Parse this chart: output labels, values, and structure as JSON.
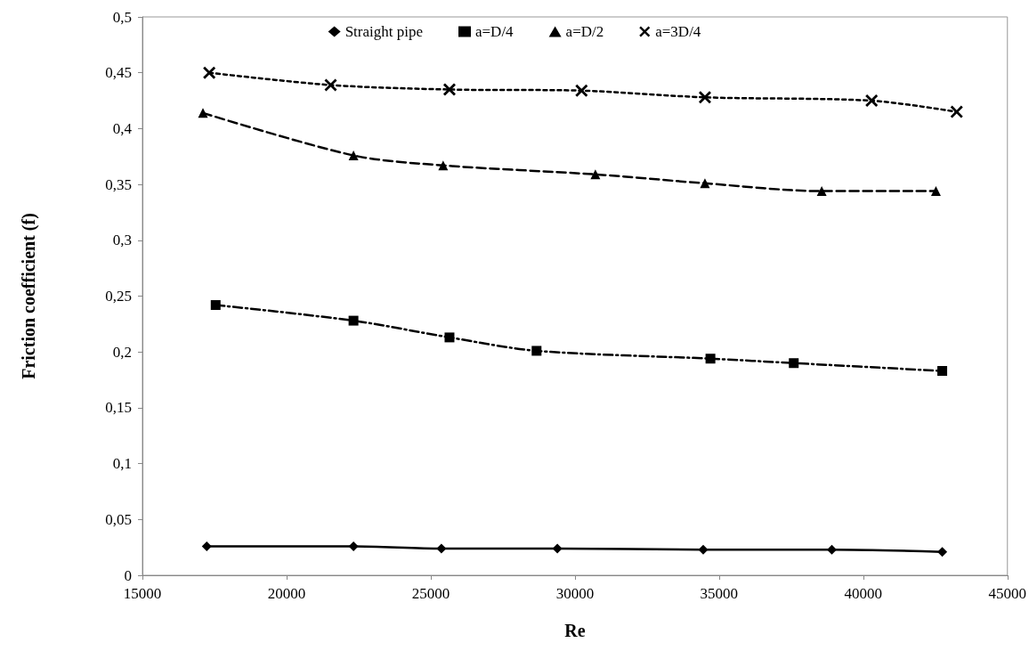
{
  "chart_data": {
    "type": "line",
    "xlabel": "Re",
    "ylabel": "Friction coefficient (f)",
    "xlim": [
      15000,
      45000
    ],
    "xticks": [
      15000,
      20000,
      25000,
      30000,
      35000,
      40000,
      45000
    ],
    "ylim": [
      0,
      0.5
    ],
    "yticks": [
      0,
      {
        "value": 0.05,
        "label": "0,05"
      },
      {
        "value": 0.1,
        "label": "0,1"
      },
      {
        "value": 0.15,
        "label": "0,15"
      },
      {
        "value": 0.2,
        "label": "0,2"
      },
      {
        "value": 0.25,
        "label": "0,25"
      },
      {
        "value": 0.3,
        "label": "0,3"
      },
      {
        "value": 0.35,
        "label": "0,35"
      },
      {
        "value": 0.4,
        "label": "0,4"
      },
      {
        "value": 0.45,
        "label": "0,45"
      },
      {
        "value": 0.5,
        "label": "0,5"
      }
    ],
    "grid": false,
    "legend": "top",
    "series": [
      {
        "name": "Straight pipe",
        "color": "#000000",
        "marker": "diamond",
        "line_style": "solid",
        "x": [
          17230,
          22320,
          25370,
          29390,
          34450,
          38910,
          42740
        ],
        "values": [
          0.026,
          0.026,
          0.024,
          0.024,
          0.023,
          0.023,
          0.021
        ]
      },
      {
        "name": "a=D/4",
        "color": "#000000",
        "marker": "square",
        "line_style": "dashdot",
        "x": [
          17540,
          22320,
          25650,
          28670,
          34700,
          37590,
          42740
        ],
        "values": [
          0.242,
          0.228,
          0.213,
          0.201,
          0.194,
          0.19,
          0.183
        ]
      },
      {
        "name": "a=D/2",
        "color": "#000000",
        "marker": "triangle",
        "line_style": "dashed",
        "x": [
          17100,
          22320,
          25430,
          30710,
          34510,
          38560,
          42520
        ],
        "values": [
          0.414,
          0.376,
          0.367,
          0.359,
          0.351,
          0.344,
          0.344
        ]
      },
      {
        "name": "a=3D/4",
        "color": "#000000",
        "marker": "cross",
        "line_style": "dotted",
        "x": [
          17320,
          21530,
          25650,
          30230,
          34510,
          40290,
          43240
        ],
        "values": [
          0.45,
          0.439,
          0.435,
          0.434,
          0.428,
          0.425,
          0.415
        ]
      }
    ]
  }
}
